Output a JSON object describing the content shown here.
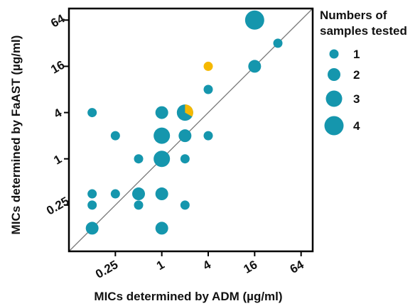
{
  "chart_data": {
    "type": "scatter",
    "xlabel": "MICs determined by ADM (µg/ml)",
    "ylabel": "MICs determined by FaAST (µg/ml)",
    "x_scale": "log2",
    "y_scale": "log2",
    "xlim": [
      0.0625,
      90.5
    ],
    "ylim": [
      0.0625,
      90.5
    ],
    "x_ticks": [
      {
        "value": 0.25,
        "label": "0.25"
      },
      {
        "value": 1,
        "label": "1"
      },
      {
        "value": 4,
        "label": "4"
      },
      {
        "value": 16,
        "label": "16"
      },
      {
        "value": 64,
        "label": "64"
      }
    ],
    "y_ticks": [
      {
        "value": 0.25,
        "label": "0.25"
      },
      {
        "value": 1,
        "label": "1"
      },
      {
        "value": 4,
        "label": "4"
      },
      {
        "value": 16,
        "label": "16"
      },
      {
        "value": 64,
        "label": "64"
      }
    ],
    "reference_line": "y = x",
    "colors": {
      "main": "#1596ad",
      "highlight": "#f5b800",
      "line": "#7a7a7a"
    },
    "points": [
      {
        "x": 0.125,
        "y": 4,
        "n": 1
      },
      {
        "x": 0.125,
        "y": 0.35,
        "n": 1
      },
      {
        "x": 0.125,
        "y": 0.25,
        "n": 1
      },
      {
        "x": 0.125,
        "y": 0.125,
        "n": 2
      },
      {
        "x": 0.25,
        "y": 2,
        "n": 1
      },
      {
        "x": 0.25,
        "y": 0.35,
        "n": 1
      },
      {
        "x": 0.5,
        "y": 1,
        "n": 1
      },
      {
        "x": 0.5,
        "y": 0.35,
        "n": 2
      },
      {
        "x": 0.5,
        "y": 0.25,
        "n": 1
      },
      {
        "x": 1,
        "y": 4,
        "n": 2
      },
      {
        "x": 1,
        "y": 2,
        "n": 3
      },
      {
        "x": 1,
        "y": 1,
        "n": 3
      },
      {
        "x": 1,
        "y": 0.35,
        "n": 2
      },
      {
        "x": 1,
        "y": 0.125,
        "n": 2
      },
      {
        "x": 2,
        "y": 4,
        "n": 3,
        "highlight_fraction": 0.333
      },
      {
        "x": 2,
        "y": 2,
        "n": 2
      },
      {
        "x": 2,
        "y": 1,
        "n": 1
      },
      {
        "x": 2,
        "y": 0.25,
        "n": 1
      },
      {
        "x": 4,
        "y": 16,
        "n": 1,
        "highlight_fraction": 1
      },
      {
        "x": 4,
        "y": 8,
        "n": 1
      },
      {
        "x": 4,
        "y": 2,
        "n": 1
      },
      {
        "x": 16,
        "y": 16,
        "n": 2
      },
      {
        "x": 16,
        "y": 64,
        "n": 4
      },
      {
        "x": 32,
        "y": 32,
        "n": 1
      }
    ],
    "legend": {
      "title_lines": [
        "Numbers of",
        "samples tested"
      ],
      "entries": [
        {
          "n": 1,
          "label": "1"
        },
        {
          "n": 2,
          "label": "2"
        },
        {
          "n": 3,
          "label": "3"
        },
        {
          "n": 4,
          "label": "4"
        }
      ]
    }
  }
}
